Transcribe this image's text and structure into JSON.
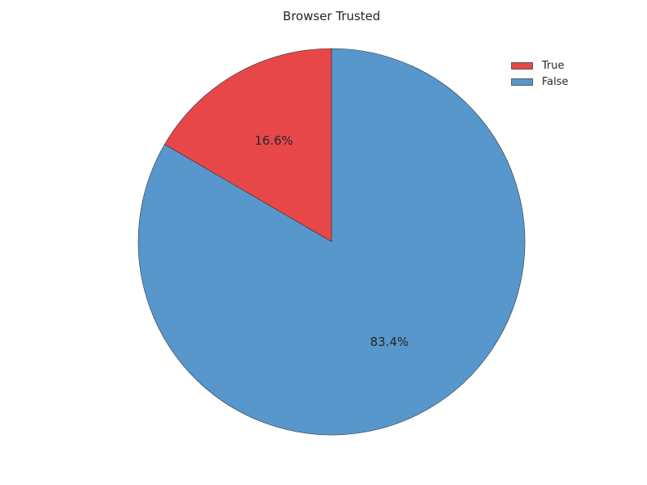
{
  "chart_data": {
    "type": "pie",
    "title": "Browser Trusted",
    "labels": [
      "True",
      "False"
    ],
    "values": [
      16.6,
      83.4
    ],
    "value_labels": [
      "16.6%",
      "83.4%"
    ],
    "colors": [
      "#e8474a",
      "#5797cc"
    ],
    "start_angle_deg": 90,
    "direction": "counterclockwise",
    "legend": {
      "position": "top-right",
      "entries": [
        "True",
        "False"
      ]
    }
  }
}
